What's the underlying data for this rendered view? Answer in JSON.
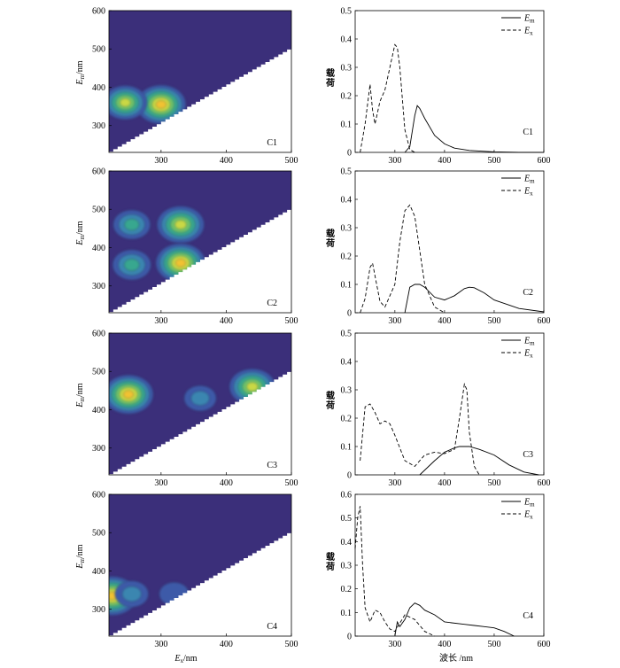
{
  "colors": {
    "background": "#3b2f7a",
    "level1": "#3e5aa8",
    "level2": "#3a86b0",
    "level3": "#37a78f",
    "level4": "#6fc36a",
    "level5": "#c9d844",
    "level6": "#f1c232",
    "white": "#ffffff"
  },
  "left_axes": {
    "xlabel_main": "E",
    "xlabel_sub": "x",
    "xlabel_unit": "/nm",
    "ylabel_main": "E",
    "ylabel_sub": "m",
    "ylabel_unit": "/nm",
    "xticks": [
      "300",
      "400",
      "500"
    ],
    "yticks": [
      "300",
      "400",
      "500",
      "600"
    ]
  },
  "right_axes": {
    "xlabel": "波长 /nm",
    "ylabel": "载荷",
    "xticks": [
      "300",
      "400",
      "500",
      "600"
    ],
    "legend_em_main": "E",
    "legend_em_sub": "m",
    "legend_ex_main": "E",
    "legend_ex_sub": "x"
  },
  "chart_data": [
    {
      "type": "heatmap",
      "label": "C1",
      "xlim": [
        220,
        500
      ],
      "ylim": [
        230,
        600
      ],
      "peaks": [
        {
          "ex": 300,
          "em": 355,
          "intensity": 1.0
        },
        {
          "ex": 245,
          "em": 360,
          "intensity": 0.75
        }
      ]
    },
    {
      "type": "line",
      "label": "C1",
      "xlim": [
        220,
        600
      ],
      "ylim": [
        0,
        0.5
      ],
      "yticks": [
        "0",
        "0.1",
        "0.2",
        "0.3",
        "0.4",
        "0.5"
      ],
      "series": [
        {
          "name": "Em",
          "style": "solid",
          "x": [
            320,
            330,
            340,
            345,
            350,
            360,
            380,
            400,
            420,
            450,
            500,
            550,
            600
          ],
          "y": [
            0,
            0.02,
            0.13,
            0.165,
            0.155,
            0.12,
            0.06,
            0.03,
            0.015,
            0.007,
            0.002,
            0,
            0
          ]
        },
        {
          "name": "Ex",
          "style": "dashed",
          "x": [
            230,
            240,
            250,
            255,
            260,
            270,
            280,
            290,
            300,
            305,
            310,
            320,
            330,
            340
          ],
          "y": [
            0,
            0.1,
            0.24,
            0.15,
            0.1,
            0.18,
            0.22,
            0.3,
            0.38,
            0.37,
            0.3,
            0.08,
            0.01,
            0
          ]
        }
      ]
    },
    {
      "type": "heatmap",
      "label": "C2",
      "xlim": [
        220,
        500
      ],
      "ylim": [
        230,
        600
      ],
      "peaks": [
        {
          "ex": 330,
          "em": 460,
          "intensity": 0.9
        },
        {
          "ex": 330,
          "em": 360,
          "intensity": 1.0
        },
        {
          "ex": 255,
          "em": 460,
          "intensity": 0.5
        },
        {
          "ex": 255,
          "em": 355,
          "intensity": 0.55
        }
      ]
    },
    {
      "type": "line",
      "label": "C2",
      "xlim": [
        220,
        600
      ],
      "ylim": [
        0,
        0.5
      ],
      "yticks": [
        "0",
        "0.1",
        "0.2",
        "0.3",
        "0.4",
        "0.5"
      ],
      "series": [
        {
          "name": "Em",
          "style": "solid",
          "x": [
            320,
            330,
            340,
            350,
            360,
            380,
            400,
            420,
            440,
            450,
            460,
            480,
            500,
            550,
            600
          ],
          "y": [
            0,
            0.09,
            0.1,
            0.1,
            0.09,
            0.055,
            0.045,
            0.06,
            0.085,
            0.09,
            0.088,
            0.07,
            0.045,
            0.015,
            0.003
          ]
        },
        {
          "name": "Ex",
          "style": "dashed",
          "x": [
            230,
            240,
            250,
            255,
            260,
            270,
            280,
            300,
            310,
            320,
            330,
            340,
            350,
            360,
            380,
            400
          ],
          "y": [
            0,
            0.05,
            0.16,
            0.175,
            0.13,
            0.04,
            0.02,
            0.1,
            0.25,
            0.36,
            0.38,
            0.34,
            0.22,
            0.1,
            0.02,
            0
          ]
        }
      ]
    },
    {
      "type": "heatmap",
      "label": "C3",
      "xlim": [
        220,
        500
      ],
      "ylim": [
        230,
        600
      ],
      "peaks": [
        {
          "ex": 250,
          "em": 440,
          "intensity": 1.0
        },
        {
          "ex": 440,
          "em": 460,
          "intensity": 0.85
        },
        {
          "ex": 360,
          "em": 430,
          "intensity": 0.3
        }
      ]
    },
    {
      "type": "line",
      "label": "C3",
      "xlim": [
        220,
        600
      ],
      "ylim": [
        0,
        0.5
      ],
      "yticks": [
        "0",
        "0.1",
        "0.2",
        "0.3",
        "0.4",
        "0.5"
      ],
      "series": [
        {
          "name": "Em",
          "style": "solid",
          "x": [
            350,
            380,
            400,
            420,
            430,
            450,
            470,
            500,
            530,
            560,
            590
          ],
          "y": [
            0,
            0.05,
            0.08,
            0.095,
            0.1,
            0.1,
            0.09,
            0.07,
            0.035,
            0.01,
            0
          ]
        },
        {
          "name": "Ex",
          "style": "dashed",
          "x": [
            230,
            240,
            250,
            260,
            270,
            280,
            290,
            300,
            320,
            340,
            360,
            380,
            400,
            420,
            430,
            440,
            445,
            450,
            460,
            470
          ],
          "y": [
            0.05,
            0.24,
            0.25,
            0.22,
            0.18,
            0.19,
            0.18,
            0.14,
            0.05,
            0.03,
            0.07,
            0.08,
            0.075,
            0.09,
            0.2,
            0.32,
            0.3,
            0.15,
            0.03,
            0
          ]
        }
      ]
    },
    {
      "type": "heatmap",
      "label": "C4",
      "xlim": [
        220,
        500
      ],
      "ylim": [
        230,
        600
      ],
      "peaks": [
        {
          "ex": 225,
          "em": 335,
          "intensity": 1.0
        },
        {
          "ex": 255,
          "em": 340,
          "intensity": 0.35
        },
        {
          "ex": 320,
          "em": 340,
          "intensity": 0.2
        }
      ]
    },
    {
      "type": "line",
      "label": "C4",
      "xlim": [
        220,
        600
      ],
      "ylim": [
        0,
        0.6
      ],
      "yticks": [
        "0",
        "0.1",
        "0.2",
        "0.3",
        "0.4",
        "0.5",
        "0.6"
      ],
      "series": [
        {
          "name": "Em",
          "style": "solid",
          "x": [
            300,
            305,
            310,
            320,
            330,
            340,
            350,
            360,
            380,
            400,
            440,
            460,
            480,
            500,
            520,
            540
          ],
          "y": [
            0,
            0.06,
            0.04,
            0.07,
            0.12,
            0.14,
            0.13,
            0.11,
            0.09,
            0.06,
            0.05,
            0.045,
            0.04,
            0.035,
            0.02,
            0
          ]
        },
        {
          "name": "Ex",
          "style": "dashed",
          "x": [
            220,
            225,
            230,
            235,
            240,
            250,
            260,
            270,
            280,
            290,
            300,
            320,
            340,
            360,
            380
          ],
          "y": [
            0.37,
            0.5,
            0.55,
            0.3,
            0.12,
            0.06,
            0.11,
            0.1,
            0.06,
            0.03,
            0.02,
            0.09,
            0.07,
            0.02,
            0
          ]
        }
      ]
    }
  ]
}
